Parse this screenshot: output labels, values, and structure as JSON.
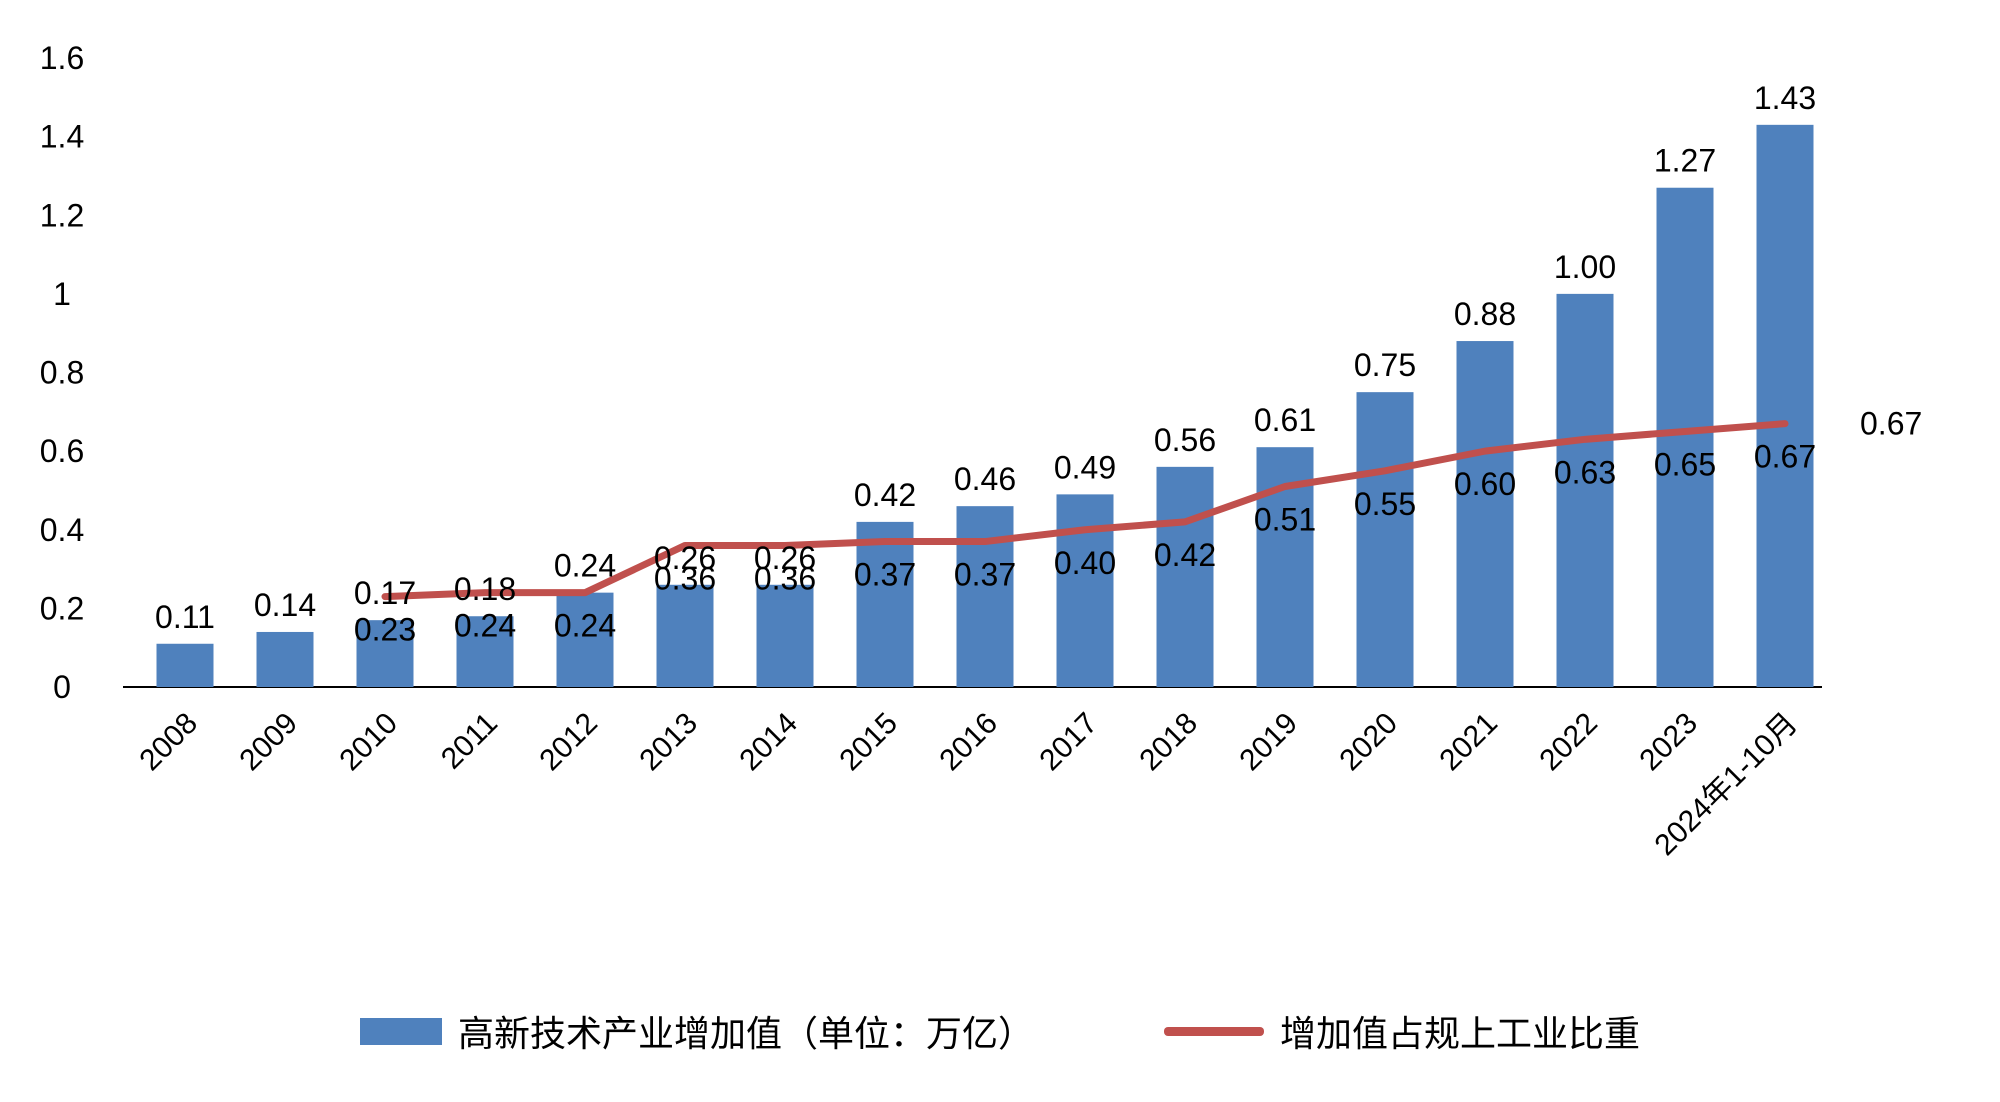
{
  "chart_data": {
    "type": "bar",
    "subtype": "combo-bar-line",
    "categories": [
      "2008",
      "2009",
      "2010",
      "2011",
      "2012",
      "2013",
      "2014",
      "2015",
      "2016",
      "2017",
      "2018",
      "2019",
      "2020",
      "2021",
      "2022",
      "2023",
      "2024年1-10月"
    ],
    "series": [
      {
        "name": "高新技术产业增加值（单位：万亿）",
        "type": "bar",
        "color": "#4f81bd",
        "values": [
          0.11,
          0.14,
          0.17,
          0.18,
          0.24,
          0.26,
          0.26,
          0.42,
          0.46,
          0.49,
          0.56,
          0.61,
          0.75,
          0.88,
          1.0,
          1.27,
          1.43
        ],
        "labels": [
          "0.11",
          "0.14",
          "0.17",
          "0.18",
          "0.24",
          "0.26",
          "0.26",
          "0.42",
          "0.46",
          "0.49",
          "0.56",
          "0.61",
          "0.75",
          "0.88",
          "1.00",
          "1.27",
          "1.43"
        ]
      },
      {
        "name": "增加值占规上工业比重",
        "type": "line",
        "color": "#c0504d",
        "values": [
          null,
          null,
          0.23,
          0.24,
          0.24,
          0.36,
          0.36,
          0.37,
          0.37,
          0.4,
          0.42,
          0.51,
          0.55,
          0.6,
          0.63,
          0.65,
          0.67
        ],
        "labels": [
          null,
          null,
          "0.23",
          "0.24",
          "0.24",
          "0.36",
          "0.36",
          "0.37",
          "0.37",
          "0.40",
          "0.42",
          "0.51",
          "0.55",
          "0.60",
          "0.63",
          "0.65",
          "0.67"
        ]
      }
    ],
    "end_label": "0.67",
    "y_ticks": [
      "0",
      "0.2",
      "0.4",
      "0.6",
      "0.8",
      "1",
      "1.2",
      "1.4",
      "1.6"
    ],
    "ylim": [
      0,
      1.6
    ],
    "grid": false,
    "legend_position": "bottom"
  },
  "legend": {
    "bar_label": "高新技术产业增加值（单位：万亿）",
    "line_label": "增加值占规上工业比重"
  }
}
